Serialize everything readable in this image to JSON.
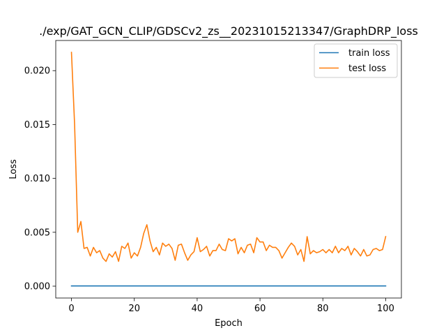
{
  "chart_data": {
    "type": "line",
    "title": "./exp/GAT_GCN_CLIP/GDSCv2_zs__20231015213347/GraphDRP_loss",
    "xlabel": "Epoch",
    "ylabel": "Loss",
    "xlim": [
      -5,
      105
    ],
    "ylim": [
      -0.0011,
      0.0228
    ],
    "xticks": [
      0,
      20,
      40,
      60,
      80,
      100
    ],
    "xtick_labels": [
      "0",
      "20",
      "40",
      "60",
      "80",
      "100"
    ],
    "yticks": [
      0.0,
      0.005,
      0.01,
      0.015,
      0.02
    ],
    "ytick_labels": [
      "0.000",
      "0.005",
      "0.010",
      "0.015",
      "0.020"
    ],
    "grid": false,
    "legend_position": "top-right",
    "series": [
      {
        "name": "train loss",
        "color": "#1f77b4",
        "x": [
          0,
          1,
          2,
          3,
          4,
          5,
          6,
          7,
          8,
          9,
          10,
          11,
          12,
          13,
          14,
          15,
          16,
          17,
          18,
          19,
          20,
          21,
          22,
          23,
          24,
          25,
          26,
          27,
          28,
          29,
          30,
          31,
          32,
          33,
          34,
          35,
          36,
          37,
          38,
          39,
          40,
          41,
          42,
          43,
          44,
          45,
          46,
          47,
          48,
          49,
          50,
          51,
          52,
          53,
          54,
          55,
          56,
          57,
          58,
          59,
          60,
          61,
          62,
          63,
          64,
          65,
          66,
          67,
          68,
          69,
          70,
          71,
          72,
          73,
          74,
          75,
          76,
          77,
          78,
          79,
          80,
          81,
          82,
          83,
          84,
          85,
          86,
          87,
          88,
          89,
          90,
          91,
          92,
          93,
          94,
          95,
          96,
          97,
          98,
          99,
          100
        ],
        "y": [
          2e-05,
          2e-05,
          2e-05,
          2e-05,
          2e-05,
          2e-05,
          2e-05,
          2e-05,
          2e-05,
          2e-05,
          2e-05,
          2e-05,
          2e-05,
          2e-05,
          2e-05,
          2e-05,
          2e-05,
          2e-05,
          2e-05,
          2e-05,
          2e-05,
          2e-05,
          2e-05,
          2e-05,
          2e-05,
          2e-05,
          2e-05,
          2e-05,
          2e-05,
          2e-05,
          2e-05,
          2e-05,
          2e-05,
          2e-05,
          2e-05,
          2e-05,
          2e-05,
          2e-05,
          2e-05,
          2e-05,
          2e-05,
          2e-05,
          2e-05,
          2e-05,
          2e-05,
          2e-05,
          2e-05,
          2e-05,
          2e-05,
          2e-05,
          2e-05,
          2e-05,
          2e-05,
          2e-05,
          2e-05,
          2e-05,
          2e-05,
          2e-05,
          2e-05,
          2e-05,
          2e-05,
          2e-05,
          2e-05,
          2e-05,
          2e-05,
          2e-05,
          2e-05,
          2e-05,
          2e-05,
          2e-05,
          2e-05,
          2e-05,
          2e-05,
          2e-05,
          2e-05,
          2e-05,
          2e-05,
          2e-05,
          2e-05,
          2e-05,
          2e-05,
          2e-05,
          2e-05,
          2e-05,
          2e-05,
          2e-05,
          2e-05,
          2e-05,
          2e-05,
          2e-05,
          2e-05,
          2e-05,
          2e-05,
          2e-05,
          2e-05,
          2e-05,
          2e-05,
          2e-05,
          2e-05,
          2e-05,
          2e-05
        ]
      },
      {
        "name": "test loss",
        "color": "#ff7f0e",
        "x": [
          0,
          1,
          2,
          3,
          4,
          5,
          6,
          7,
          8,
          9,
          10,
          11,
          12,
          13,
          14,
          15,
          16,
          17,
          18,
          19,
          20,
          21,
          22,
          23,
          24,
          25,
          26,
          27,
          28,
          29,
          30,
          31,
          32,
          33,
          34,
          35,
          36,
          37,
          38,
          39,
          40,
          41,
          42,
          43,
          44,
          45,
          46,
          47,
          48,
          49,
          50,
          51,
          52,
          53,
          54,
          55,
          56,
          57,
          58,
          59,
          60,
          61,
          62,
          63,
          64,
          65,
          66,
          67,
          68,
          69,
          70,
          71,
          72,
          73,
          74,
          75,
          76,
          77,
          78,
          79,
          80,
          81,
          82,
          83,
          84,
          85,
          86,
          87,
          88,
          89,
          90,
          91,
          92,
          93,
          94,
          95,
          96,
          97,
          98,
          99,
          100
        ],
        "y": [
          0.0217,
          0.015,
          0.005,
          0.006,
          0.0035,
          0.0036,
          0.0028,
          0.0036,
          0.0031,
          0.0033,
          0.0026,
          0.0023,
          0.003,
          0.0027,
          0.0032,
          0.0023,
          0.0037,
          0.0035,
          0.004,
          0.0026,
          0.0031,
          0.0028,
          0.0036,
          0.0049,
          0.0057,
          0.0042,
          0.0032,
          0.0036,
          0.0029,
          0.004,
          0.0037,
          0.0039,
          0.0035,
          0.0024,
          0.0038,
          0.0039,
          0.0031,
          0.0024,
          0.0029,
          0.0032,
          0.0045,
          0.0032,
          0.0034,
          0.0037,
          0.0028,
          0.0033,
          0.0033,
          0.0039,
          0.0034,
          0.0033,
          0.0044,
          0.0042,
          0.0044,
          0.003,
          0.0036,
          0.0031,
          0.0038,
          0.0039,
          0.0031,
          0.0045,
          0.0041,
          0.0041,
          0.0033,
          0.0038,
          0.0036,
          0.0036,
          0.0033,
          0.0026,
          0.0031,
          0.0036,
          0.004,
          0.0037,
          0.0029,
          0.0034,
          0.0023,
          0.0046,
          0.003,
          0.0033,
          0.0031,
          0.0032,
          0.0034,
          0.0031,
          0.0034,
          0.0031,
          0.0037,
          0.0031,
          0.0035,
          0.0033,
          0.0037,
          0.0029,
          0.0035,
          0.0032,
          0.0028,
          0.0034,
          0.0028,
          0.0029,
          0.0034,
          0.0035,
          0.0033,
          0.0034,
          0.0046
        ]
      }
    ]
  }
}
